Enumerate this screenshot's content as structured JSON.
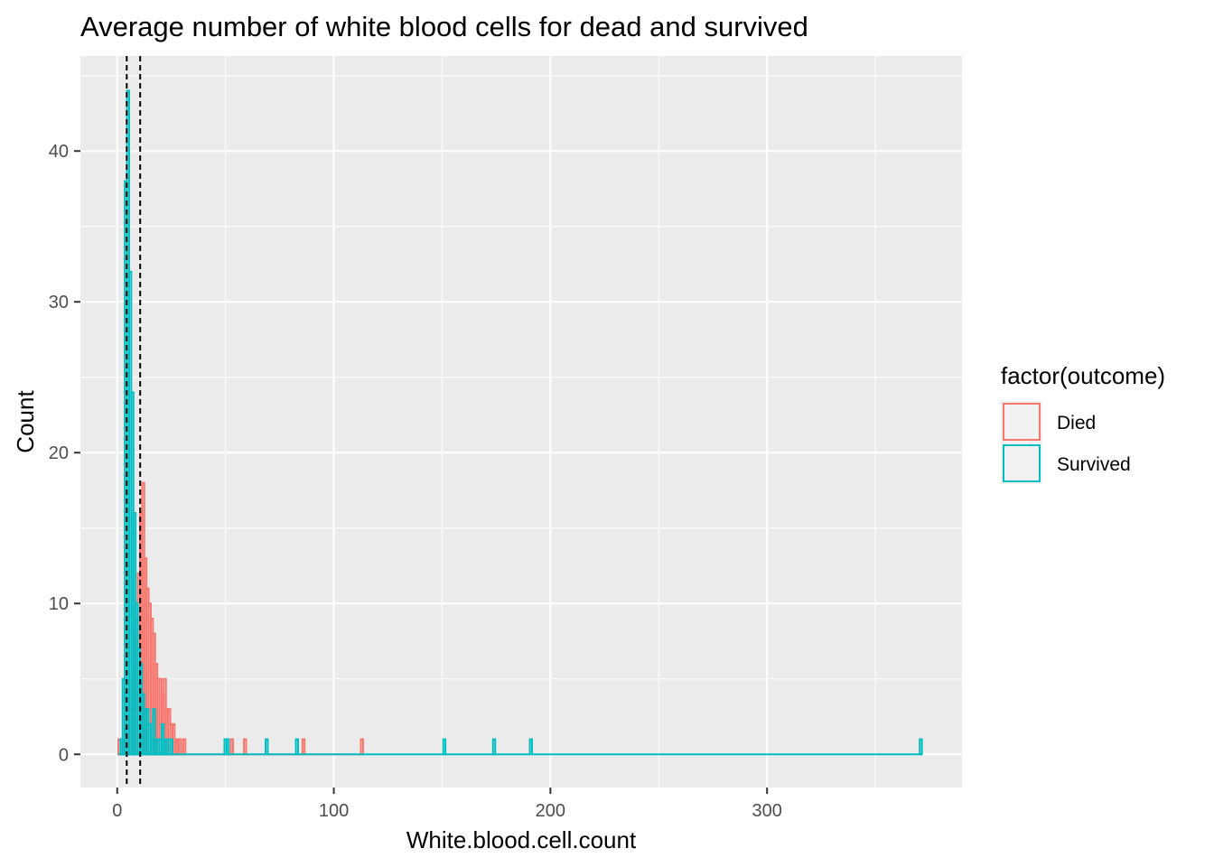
{
  "chart_data": {
    "type": "histogram",
    "title": "Average number of white blood cells for dead and survived",
    "xlabel": "White.blood.cell.count",
    "ylabel": "Count",
    "xlim": [
      -17,
      390
    ],
    "ylim": [
      -2.2,
      46.3
    ],
    "x_ticks": [
      0,
      100,
      200,
      300
    ],
    "x_tick_labels": [
      "0",
      "100",
      "200",
      "300"
    ],
    "y_ticks": [
      0,
      10,
      20,
      30,
      40
    ],
    "y_tick_labels": [
      "0",
      "10",
      "20",
      "30",
      "40"
    ],
    "bin_width": 1,
    "grid": true,
    "panel_background": "#ebebeb",
    "reference_lines": {
      "style": "dashed",
      "color": "#000000",
      "x": [
        4.4,
        10.6
      ]
    },
    "legend": {
      "title": "factor(outcome)",
      "position": "right"
    },
    "series": [
      {
        "name": "Died",
        "color": "#f8766d",
        "x": [
          1,
          2,
          3,
          4,
          5,
          6,
          7,
          8,
          9,
          10,
          11,
          12,
          13,
          14,
          15,
          16,
          17,
          18,
          19,
          20,
          21,
          22,
          23,
          24,
          25,
          26,
          27,
          28,
          29,
          30,
          31,
          53,
          59,
          86,
          113
        ],
        "values": [
          1,
          0,
          1,
          2,
          3,
          3,
          5,
          8,
          9,
          12,
          16,
          18,
          13,
          11,
          10,
          9,
          8,
          6,
          5,
          5,
          4,
          5,
          3,
          3,
          2,
          2,
          1,
          1,
          1,
          0,
          1,
          1,
          1,
          1,
          1
        ]
      },
      {
        "name": "Survived",
        "color": "#00bfc4",
        "x": [
          1,
          2,
          3,
          4,
          5,
          6,
          7,
          8,
          9,
          10,
          11,
          12,
          13,
          14,
          15,
          16,
          17,
          18,
          19,
          20,
          21,
          22,
          23,
          24,
          25,
          26,
          27,
          28,
          29,
          30,
          50,
          51,
          69,
          83,
          151,
          174,
          191,
          371
        ],
        "values": [
          0,
          1,
          5,
          38,
          44,
          32,
          24,
          16,
          10,
          7,
          6,
          4,
          3,
          3,
          2,
          1,
          3,
          1,
          1,
          1,
          2,
          1,
          1,
          0,
          1,
          0,
          0,
          0,
          0,
          0,
          1,
          1,
          1,
          1,
          1,
          1,
          1,
          1
        ]
      }
    ]
  }
}
